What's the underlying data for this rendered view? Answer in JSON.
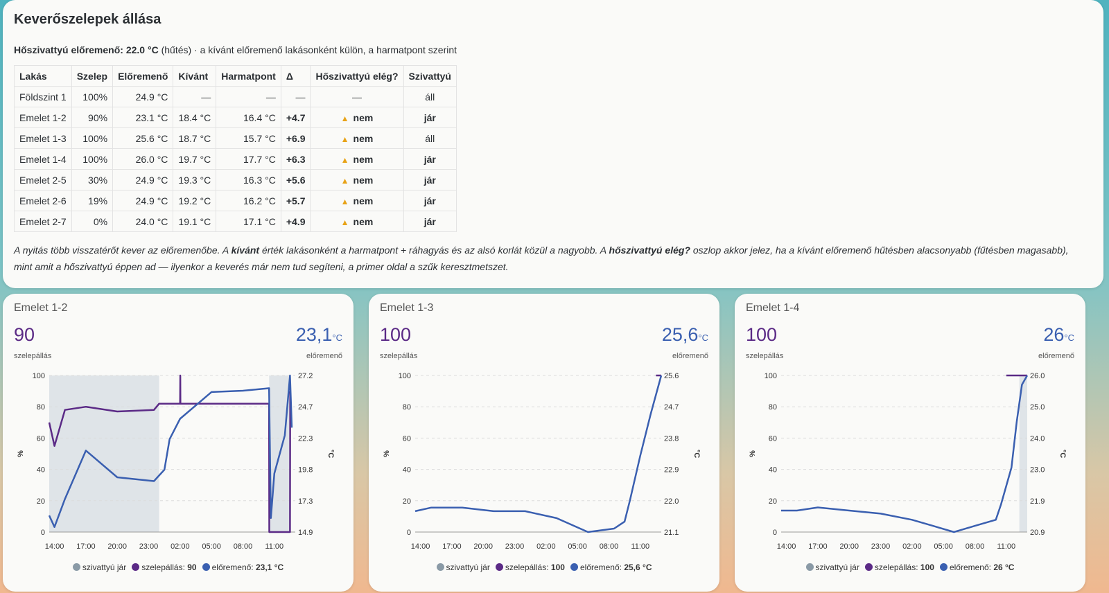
{
  "top": {
    "title": "Keverőszelepek állása",
    "heatpump_label": "Hőszivattyú előremenő:",
    "heatpump_value": "22.0 °C",
    "heatpump_mode": "(hűtés)",
    "heatpump_rest": "· a kívánt előremenő lakásonként külön, a harmatpont szerint",
    "columns": [
      "Lakás",
      "Szelep",
      "Előremenő",
      "Kívánt",
      "Harmatpont",
      "Δ",
      "Hőszivattyú elég?",
      "Szivattyú"
    ],
    "rows": [
      [
        "Földszint 1",
        "100%",
        "24.9 °C",
        "—",
        "—",
        "—",
        "—",
        "áll"
      ],
      [
        "Emelet 1-2",
        "90%",
        "23.1 °C",
        "18.4 °C",
        "16.4 °C",
        "+4.7",
        "nem",
        "jár"
      ],
      [
        "Emelet 1-3",
        "100%",
        "25.6 °C",
        "18.7 °C",
        "15.7 °C",
        "+6.9",
        "nem",
        "áll"
      ],
      [
        "Emelet 1-4",
        "100%",
        "26.0 °C",
        "19.7 °C",
        "17.7 °C",
        "+6.3",
        "nem",
        "jár"
      ],
      [
        "Emelet 2-5",
        "30%",
        "24.9 °C",
        "19.3 °C",
        "16.3 °C",
        "+5.6",
        "nem",
        "jár"
      ],
      [
        "Emelet 2-6",
        "19%",
        "24.9 °C",
        "19.2 °C",
        "16.2 °C",
        "+5.7",
        "nem",
        "jár"
      ],
      [
        "Emelet 2-7",
        "0%",
        "24.0 °C",
        "19.1 °C",
        "17.1 °C",
        "+4.9",
        "nem",
        "jár"
      ]
    ],
    "note": {
      "p1": "A nyitás több visszatérőt kever az előremenőbe. A ",
      "b1": "kívánt",
      "p2": " érték lakásonként a harmatpont + ráhagyás és az alsó korlát közül a nagyobb. A ",
      "b2": "hőszivattyú elég?",
      "p3": " oszlop akkor jelez, ha a kívánt előremenő hűtésben alacsonyabb (fűtésben magasabb), mint amit a hőszivattyú éppen ad — ilyenkor a keverés már nem tud segíteni, a primer oldal a szűk keresztmetszet."
    }
  },
  "cards": [
    {
      "title": "Emelet 1-2",
      "valve_value": "90",
      "valve_label": "szelepállás",
      "flow_value": "23,1",
      "flow_unit": "°C",
      "flow_label": "előremenő",
      "legend": {
        "pump": "szivattyú jár",
        "valve_prefix": "szelepállás:",
        "valve_val": "90",
        "flow_prefix": "előremenő:",
        "flow_val": "23,1 °C"
      },
      "right_ticks": [
        "27.2",
        "24.7",
        "22.3",
        "19.8",
        "17.3",
        "14.9"
      ]
    },
    {
      "title": "Emelet 1-3",
      "valve_value": "100",
      "valve_label": "szelepállás",
      "flow_value": "25,6",
      "flow_unit": "°C",
      "flow_label": "előremenő",
      "legend": {
        "pump": "szivattyú jár",
        "valve_prefix": "szelepállás:",
        "valve_val": "100",
        "flow_prefix": "előremenő:",
        "flow_val": "25,6 °C"
      },
      "right_ticks": [
        "25.6",
        "24.7",
        "23.8",
        "22.9",
        "22.0",
        "21.1"
      ]
    },
    {
      "title": "Emelet 1-4",
      "valve_value": "100",
      "valve_label": "szelepállás",
      "flow_value": "26",
      "flow_unit": "°C",
      "flow_label": "előremenő",
      "legend": {
        "pump": "szivattyú jár",
        "valve_prefix": "szelepállás:",
        "valve_val": "100",
        "flow_prefix": "előremenő:",
        "flow_val": "26 °C"
      },
      "right_ticks": [
        "26.0",
        "25.0",
        "24.0",
        "23.0",
        "21.9",
        "20.9"
      ]
    }
  ],
  "axes": {
    "left_ticks": [
      "100",
      "80",
      "60",
      "40",
      "20",
      "0"
    ],
    "x_ticks": [
      "14:00",
      "17:00",
      "20:00",
      "23:00",
      "02:00",
      "05:00",
      "08:00",
      "11:00"
    ],
    "left_unit": "%",
    "right_unit": "°C"
  },
  "colors": {
    "valve": "#5b2a86",
    "flow": "#3a5fb0",
    "pump": "#8a9aa6",
    "pump_band": "#dfe4e8"
  },
  "chart_data": [
    {
      "type": "line",
      "title": "Emelet 1-2",
      "x_range": [
        "13:30",
        "13:00 +1d"
      ],
      "y_left": [
        0,
        100
      ],
      "y_right": [
        14.9,
        27.2
      ],
      "pump_running": [
        [
          "13:30",
          "00:00"
        ],
        [
          "10:30",
          "12:30"
        ]
      ],
      "series": [
        {
          "name": "szelepállás",
          "axis": "left",
          "points": [
            [
              "13:30",
              70
            ],
            [
              "14:00",
              55
            ],
            [
              "15:00",
              78
            ],
            [
              "17:00",
              80
            ],
            [
              "20:00",
              77
            ],
            [
              "23:30",
              78
            ],
            [
              "00:00",
              82
            ],
            [
              "02:00",
              82
            ],
            [
              "02:01",
              100
            ],
            [
              "02:02",
              82
            ],
            [
              "10:30",
              82
            ],
            [
              "10:31",
              0
            ],
            [
              "12:30",
              0
            ],
            [
              "12:31",
              90
            ]
          ]
        },
        {
          "name": "előremenő",
          "axis": "right",
          "points": [
            [
              "13:30",
              16.2
            ],
            [
              "14:00",
              15.3
            ],
            [
              "15:00",
              17.5
            ],
            [
              "17:00",
              21.3
            ],
            [
              "20:00",
              19.2
            ],
            [
              "23:30",
              18.9
            ],
            [
              "00:30",
              19.8
            ],
            [
              "01:00",
              22.2
            ],
            [
              "02:00",
              23.8
            ],
            [
              "05:00",
              25.9
            ],
            [
              "08:00",
              26.0
            ],
            [
              "10:30",
              26.2
            ],
            [
              "10:40",
              16.0
            ],
            [
              "11:00",
              19.5
            ],
            [
              "12:00",
              22.5
            ],
            [
              "12:30",
              27.2
            ],
            [
              "12:40",
              23.1
            ]
          ]
        }
      ]
    },
    {
      "type": "line",
      "title": "Emelet 1-3",
      "x_range": [
        "13:30",
        "13:00 +1d"
      ],
      "y_left": [
        0,
        100
      ],
      "y_right": [
        21.1,
        25.6
      ],
      "pump_running": [],
      "series": [
        {
          "name": "szelepállás",
          "axis": "left",
          "points": [
            [
              "12:30",
              100
            ],
            [
              "13:00",
              100
            ]
          ]
        },
        {
          "name": "előremenő",
          "axis": "right",
          "points": [
            [
              "13:30",
              21.7
            ],
            [
              "15:00",
              21.8
            ],
            [
              "18:00",
              21.8
            ],
            [
              "21:00",
              21.7
            ],
            [
              "00:00",
              21.7
            ],
            [
              "03:00",
              21.5
            ],
            [
              "06:00",
              21.1
            ],
            [
              "08:30",
              21.2
            ],
            [
              "09:30",
              21.4
            ],
            [
              "10:00",
              22.0
            ],
            [
              "11:00",
              23.3
            ],
            [
              "12:00",
              24.5
            ],
            [
              "13:00",
              25.6
            ]
          ]
        }
      ]
    },
    {
      "type": "line",
      "title": "Emelet 1-4",
      "x_range": [
        "13:30",
        "13:00 +1d"
      ],
      "y_left": [
        0,
        100
      ],
      "y_right": [
        20.9,
        26.0
      ],
      "pump_running": [
        [
          "12:15",
          "13:00"
        ]
      ],
      "series": [
        {
          "name": "szelepállás",
          "axis": "left",
          "points": [
            [
              "11:00",
              100
            ],
            [
              "13:00",
              100
            ]
          ]
        },
        {
          "name": "előremenő",
          "axis": "right",
          "points": [
            [
              "13:30",
              21.6
            ],
            [
              "15:00",
              21.6
            ],
            [
              "17:00",
              21.7
            ],
            [
              "20:00",
              21.6
            ],
            [
              "23:00",
              21.5
            ],
            [
              "02:00",
              21.3
            ],
            [
              "04:00",
              21.1
            ],
            [
              "06:00",
              20.9
            ],
            [
              "08:00",
              21.1
            ],
            [
              "10:00",
              21.3
            ],
            [
              "10:30",
              21.8
            ],
            [
              "11:30",
              23.0
            ],
            [
              "12:00",
              24.5
            ],
            [
              "12:30",
              25.7
            ],
            [
              "13:00",
              26.0
            ]
          ]
        }
      ]
    }
  ]
}
